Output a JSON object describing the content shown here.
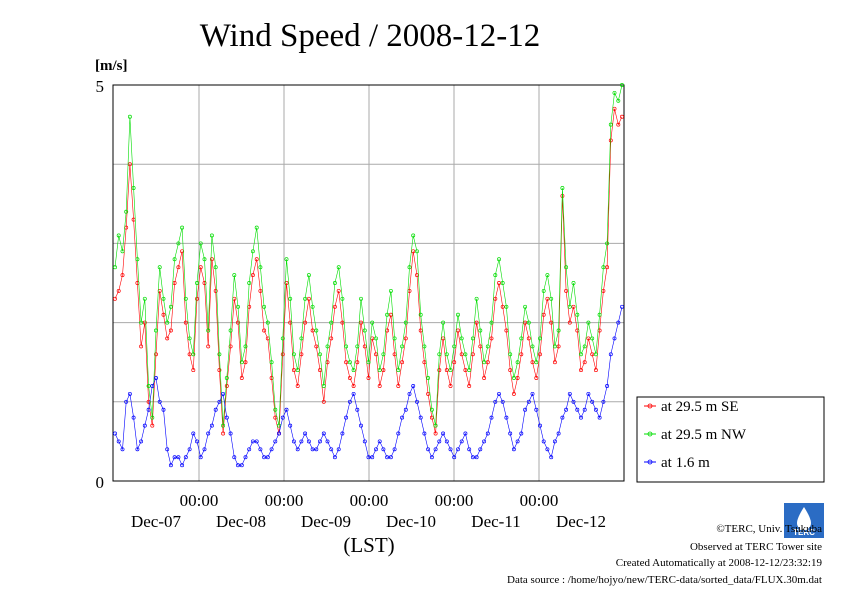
{
  "chart_data": {
    "type": "line",
    "title": "Wind Speed / 2008-12-12",
    "ylabel": "[m/s]",
    "xlabel": "(LST)",
    "ylim": [
      0,
      5
    ],
    "y_ticks": [
      "0",
      "5"
    ],
    "x_ticks": [
      {
        "time": "00:00",
        "date": "Dec-07"
      },
      {
        "time": "00:00",
        "date": "Dec-08"
      },
      {
        "time": "00:00",
        "date": "Dec-09"
      },
      {
        "time": "00:00",
        "date": "Dec-10"
      },
      {
        "time": "00:00",
        "date": "Dec-11"
      },
      {
        "time": "00:00",
        "date": "Dec-12"
      }
    ],
    "grid": true,
    "legend_position": "right",
    "series": [
      {
        "name": "at 29.5 m SE",
        "color": "#ff0000",
        "values": [
          2.3,
          2.4,
          2.6,
          3.2,
          4.0,
          3.3,
          2.5,
          1.7,
          2.0,
          1.0,
          0.7,
          1.6,
          2.4,
          2.1,
          1.8,
          1.9,
          2.5,
          2.7,
          2.9,
          2.0,
          1.6,
          1.4,
          2.3,
          2.7,
          2.5,
          1.7,
          2.8,
          2.4,
          1.4,
          0.6,
          1.2,
          1.7,
          2.3,
          2.0,
          1.3,
          1.5,
          2.2,
          2.6,
          2.8,
          2.4,
          1.9,
          1.8,
          1.3,
          0.8,
          0.6,
          1.6,
          2.5,
          2.0,
          1.4,
          1.2,
          1.6,
          2.0,
          2.3,
          1.9,
          1.7,
          1.4,
          1.0,
          1.5,
          1.8,
          2.2,
          2.4,
          2.0,
          1.5,
          1.3,
          1.2,
          1.5,
          2.0,
          1.7,
          1.3,
          1.8,
          1.6,
          1.2,
          1.4,
          1.9,
          2.1,
          1.6,
          1.2,
          1.5,
          1.8,
          2.4,
          2.9,
          2.6,
          1.9,
          1.5,
          1.1,
          0.8,
          0.6,
          1.4,
          1.8,
          1.4,
          1.2,
          1.5,
          1.9,
          1.6,
          1.4,
          1.2,
          1.6,
          2.0,
          1.7,
          1.3,
          1.5,
          1.8,
          2.3,
          2.5,
          2.2,
          1.9,
          1.4,
          1.1,
          1.3,
          1.6,
          2.0,
          1.8,
          1.5,
          1.3,
          1.6,
          2.1,
          2.3,
          2.0,
          1.5,
          1.7,
          3.6,
          2.4,
          2.0,
          2.2,
          1.9,
          1.4,
          1.5,
          1.8,
          1.6,
          1.4,
          1.9,
          2.4,
          2.7,
          4.3,
          4.7,
          4.5,
          4.6
        ]
      },
      {
        "name": "at 29.5 m NW",
        "color": "#00dd00",
        "values": [
          2.7,
          3.1,
          2.9,
          3.4,
          4.6,
          3.7,
          2.8,
          2.0,
          2.3,
          1.2,
          0.8,
          1.9,
          2.7,
          2.3,
          2.0,
          2.2,
          2.8,
          3.0,
          3.2,
          2.3,
          1.8,
          1.6,
          2.5,
          3.0,
          2.8,
          1.9,
          3.1,
          2.7,
          1.6,
          0.7,
          1.3,
          1.9,
          2.6,
          2.2,
          1.5,
          1.7,
          2.5,
          2.9,
          3.2,
          2.7,
          2.2,
          2.0,
          1.5,
          0.9,
          0.7,
          1.8,
          2.8,
          2.3,
          1.6,
          1.4,
          1.8,
          2.3,
          2.6,
          2.2,
          1.9,
          1.6,
          1.2,
          1.7,
          2.0,
          2.5,
          2.7,
          2.3,
          1.7,
          1.5,
          1.4,
          1.7,
          2.3,
          1.9,
          1.5,
          2.0,
          1.8,
          1.4,
          1.6,
          2.1,
          2.4,
          1.8,
          1.4,
          1.7,
          2.0,
          2.7,
          3.1,
          2.9,
          2.1,
          1.7,
          1.3,
          0.9,
          0.7,
          1.6,
          2.0,
          1.6,
          1.4,
          1.7,
          2.1,
          1.8,
          1.6,
          1.4,
          1.8,
          2.3,
          1.9,
          1.5,
          1.7,
          2.0,
          2.6,
          2.8,
          2.5,
          2.2,
          1.6,
          1.3,
          1.5,
          1.8,
          2.2,
          2.0,
          1.7,
          1.5,
          1.8,
          2.4,
          2.6,
          2.3,
          1.7,
          1.9,
          3.7,
          2.7,
          2.2,
          2.5,
          2.1,
          1.6,
          1.7,
          2.0,
          1.8,
          1.6,
          2.1,
          2.7,
          3.0,
          4.5,
          4.9,
          4.8,
          5.0
        ]
      },
      {
        "name": "at 1.6 m",
        "color": "#0000ff",
        "values": [
          0.6,
          0.5,
          0.4,
          1.0,
          1.1,
          0.8,
          0.4,
          0.5,
          0.7,
          0.9,
          1.2,
          1.3,
          1.0,
          0.9,
          0.4,
          0.2,
          0.3,
          0.3,
          0.2,
          0.3,
          0.4,
          0.6,
          0.5,
          0.3,
          0.4,
          0.6,
          0.7,
          0.9,
          1.0,
          1.1,
          0.8,
          0.6,
          0.3,
          0.2,
          0.2,
          0.3,
          0.4,
          0.5,
          0.5,
          0.4,
          0.3,
          0.3,
          0.4,
          0.5,
          0.6,
          0.8,
          0.9,
          0.7,
          0.5,
          0.4,
          0.5,
          0.6,
          0.5,
          0.4,
          0.4,
          0.5,
          0.6,
          0.5,
          0.4,
          0.3,
          0.4,
          0.6,
          0.8,
          1.0,
          1.1,
          0.9,
          0.7,
          0.5,
          0.3,
          0.3,
          0.4,
          0.5,
          0.4,
          0.3,
          0.3,
          0.4,
          0.6,
          0.8,
          0.9,
          1.1,
          1.2,
          1.0,
          0.8,
          0.6,
          0.4,
          0.3,
          0.4,
          0.5,
          0.6,
          0.5,
          0.4,
          0.3,
          0.4,
          0.5,
          0.6,
          0.4,
          0.3,
          0.3,
          0.4,
          0.5,
          0.6,
          0.8,
          1.0,
          1.1,
          1.0,
          0.8,
          0.6,
          0.4,
          0.5,
          0.6,
          0.9,
          1.0,
          1.1,
          0.9,
          0.7,
          0.5,
          0.4,
          0.3,
          0.5,
          0.6,
          0.8,
          0.9,
          1.1,
          1.0,
          0.9,
          0.8,
          0.9,
          1.1,
          1.0,
          0.9,
          0.8,
          1.0,
          1.2,
          1.6,
          1.8,
          2.0,
          2.2
        ]
      }
    ]
  },
  "footer": {
    "logo_text": "TERC",
    "credit": "©TERC, Univ. Tsukuba",
    "observed": "Observed at TERC Tower site",
    "created": "Created Automatically at 2008-12-12/23:32:19",
    "source": "Data source : /home/hojyo/new/TERC-data/sorted_data/FLUX.30m.dat"
  }
}
